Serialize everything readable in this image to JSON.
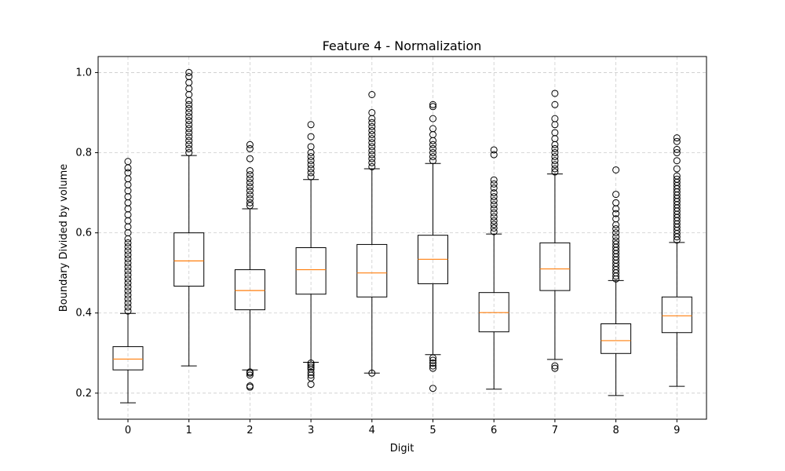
{
  "chart_data": {
    "type": "box",
    "title": "Feature 4 - Normalization",
    "xlabel": "Digit",
    "ylabel": "Boundary Divided by volume",
    "categories": [
      "0",
      "1",
      "2",
      "3",
      "4",
      "5",
      "6",
      "7",
      "8",
      "9"
    ],
    "ylim": [
      0.135,
      1.04
    ],
    "yticks": [
      0.2,
      0.4,
      0.6,
      0.8,
      1.0
    ],
    "ytick_labels": [
      "0.2",
      "0.4",
      "0.6",
      "0.8",
      "1.0"
    ],
    "grid": true,
    "colors": {
      "box": "#000000",
      "median": "#ff7f0e",
      "grid": "#cccccc",
      "flier": "#000000"
    },
    "boxes": [
      {
        "label": "0",
        "whisker_low": 0.176,
        "q1": 0.258,
        "median": 0.285,
        "q3": 0.316,
        "whisker_high": 0.399,
        "fliers": [
          0.405,
          0.415,
          0.425,
          0.435,
          0.445,
          0.455,
          0.465,
          0.475,
          0.485,
          0.495,
          0.505,
          0.515,
          0.525,
          0.535,
          0.545,
          0.555,
          0.565,
          0.575,
          0.585,
          0.6,
          0.615,
          0.63,
          0.645,
          0.66,
          0.675,
          0.69,
          0.705,
          0.72,
          0.735,
          0.75,
          0.762,
          0.778
        ]
      },
      {
        "label": "1",
        "whisker_low": 0.268,
        "q1": 0.467,
        "median": 0.53,
        "q3": 0.6,
        "whisker_high": 0.793,
        "fliers": [
          0.8,
          0.81,
          0.82,
          0.83,
          0.84,
          0.85,
          0.86,
          0.87,
          0.88,
          0.89,
          0.9,
          0.91,
          0.92,
          0.93,
          0.945,
          0.96,
          0.975,
          0.99,
          1.0
        ]
      },
      {
        "label": "2",
        "whisker_low": 0.258,
        "q1": 0.408,
        "median": 0.456,
        "q3": 0.508,
        "whisker_high": 0.66,
        "fliers": [
          0.215,
          0.218,
          0.245,
          0.25,
          0.253,
          0.668,
          0.675,
          0.685,
          0.695,
          0.705,
          0.715,
          0.725,
          0.735,
          0.745,
          0.755,
          0.785,
          0.81,
          0.82
        ]
      },
      {
        "label": "3",
        "whisker_low": 0.277,
        "q1": 0.447,
        "median": 0.508,
        "q3": 0.563,
        "whisker_high": 0.733,
        "fliers": [
          0.222,
          0.238,
          0.245,
          0.252,
          0.26,
          0.265,
          0.27,
          0.275,
          0.74,
          0.75,
          0.76,
          0.77,
          0.78,
          0.79,
          0.8,
          0.815,
          0.84,
          0.87
        ]
      },
      {
        "label": "4",
        "whisker_low": 0.25,
        "q1": 0.44,
        "median": 0.5,
        "q3": 0.571,
        "whisker_high": 0.76,
        "fliers": [
          0.25,
          0.765,
          0.775,
          0.785,
          0.795,
          0.805,
          0.815,
          0.825,
          0.835,
          0.845,
          0.855,
          0.865,
          0.875,
          0.885,
          0.9,
          0.945
        ]
      },
      {
        "label": "5",
        "whisker_low": 0.296,
        "q1": 0.473,
        "median": 0.534,
        "q3": 0.594,
        "whisker_high": 0.773,
        "fliers": [
          0.212,
          0.262,
          0.268,
          0.275,
          0.282,
          0.288,
          0.78,
          0.79,
          0.8,
          0.81,
          0.82,
          0.83,
          0.845,
          0.86,
          0.885,
          0.915,
          0.92
        ]
      },
      {
        "label": "6",
        "whisker_low": 0.21,
        "q1": 0.353,
        "median": 0.401,
        "q3": 0.451,
        "whisker_high": 0.597,
        "fliers": [
          0.603,
          0.612,
          0.621,
          0.63,
          0.64,
          0.65,
          0.66,
          0.67,
          0.68,
          0.69,
          0.7,
          0.712,
          0.722,
          0.732,
          0.795,
          0.807
        ]
      },
      {
        "label": "7",
        "whisker_low": 0.284,
        "q1": 0.456,
        "median": 0.51,
        "q3": 0.575,
        "whisker_high": 0.747,
        "fliers": [
          0.262,
          0.268,
          0.752,
          0.76,
          0.77,
          0.78,
          0.79,
          0.8,
          0.81,
          0.82,
          0.835,
          0.85,
          0.87,
          0.885,
          0.92,
          0.948
        ]
      },
      {
        "label": "8",
        "whisker_low": 0.194,
        "q1": 0.299,
        "median": 0.331,
        "q3": 0.373,
        "whisker_high": 0.481,
        "fliers": [
          0.485,
          0.492,
          0.5,
          0.508,
          0.516,
          0.524,
          0.532,
          0.54,
          0.548,
          0.556,
          0.564,
          0.572,
          0.58,
          0.59,
          0.6,
          0.61,
          0.62,
          0.635,
          0.648,
          0.66,
          0.675,
          0.696,
          0.757
        ]
      },
      {
        "label": "9",
        "whisker_low": 0.217,
        "q1": 0.351,
        "median": 0.393,
        "q3": 0.44,
        "whisker_high": 0.576,
        "fliers": [
          0.582,
          0.59,
          0.598,
          0.606,
          0.614,
          0.622,
          0.63,
          0.638,
          0.646,
          0.654,
          0.662,
          0.67,
          0.678,
          0.686,
          0.694,
          0.702,
          0.71,
          0.718,
          0.726,
          0.734,
          0.742,
          0.76,
          0.78,
          0.8,
          0.808,
          0.828,
          0.837
        ]
      }
    ]
  }
}
